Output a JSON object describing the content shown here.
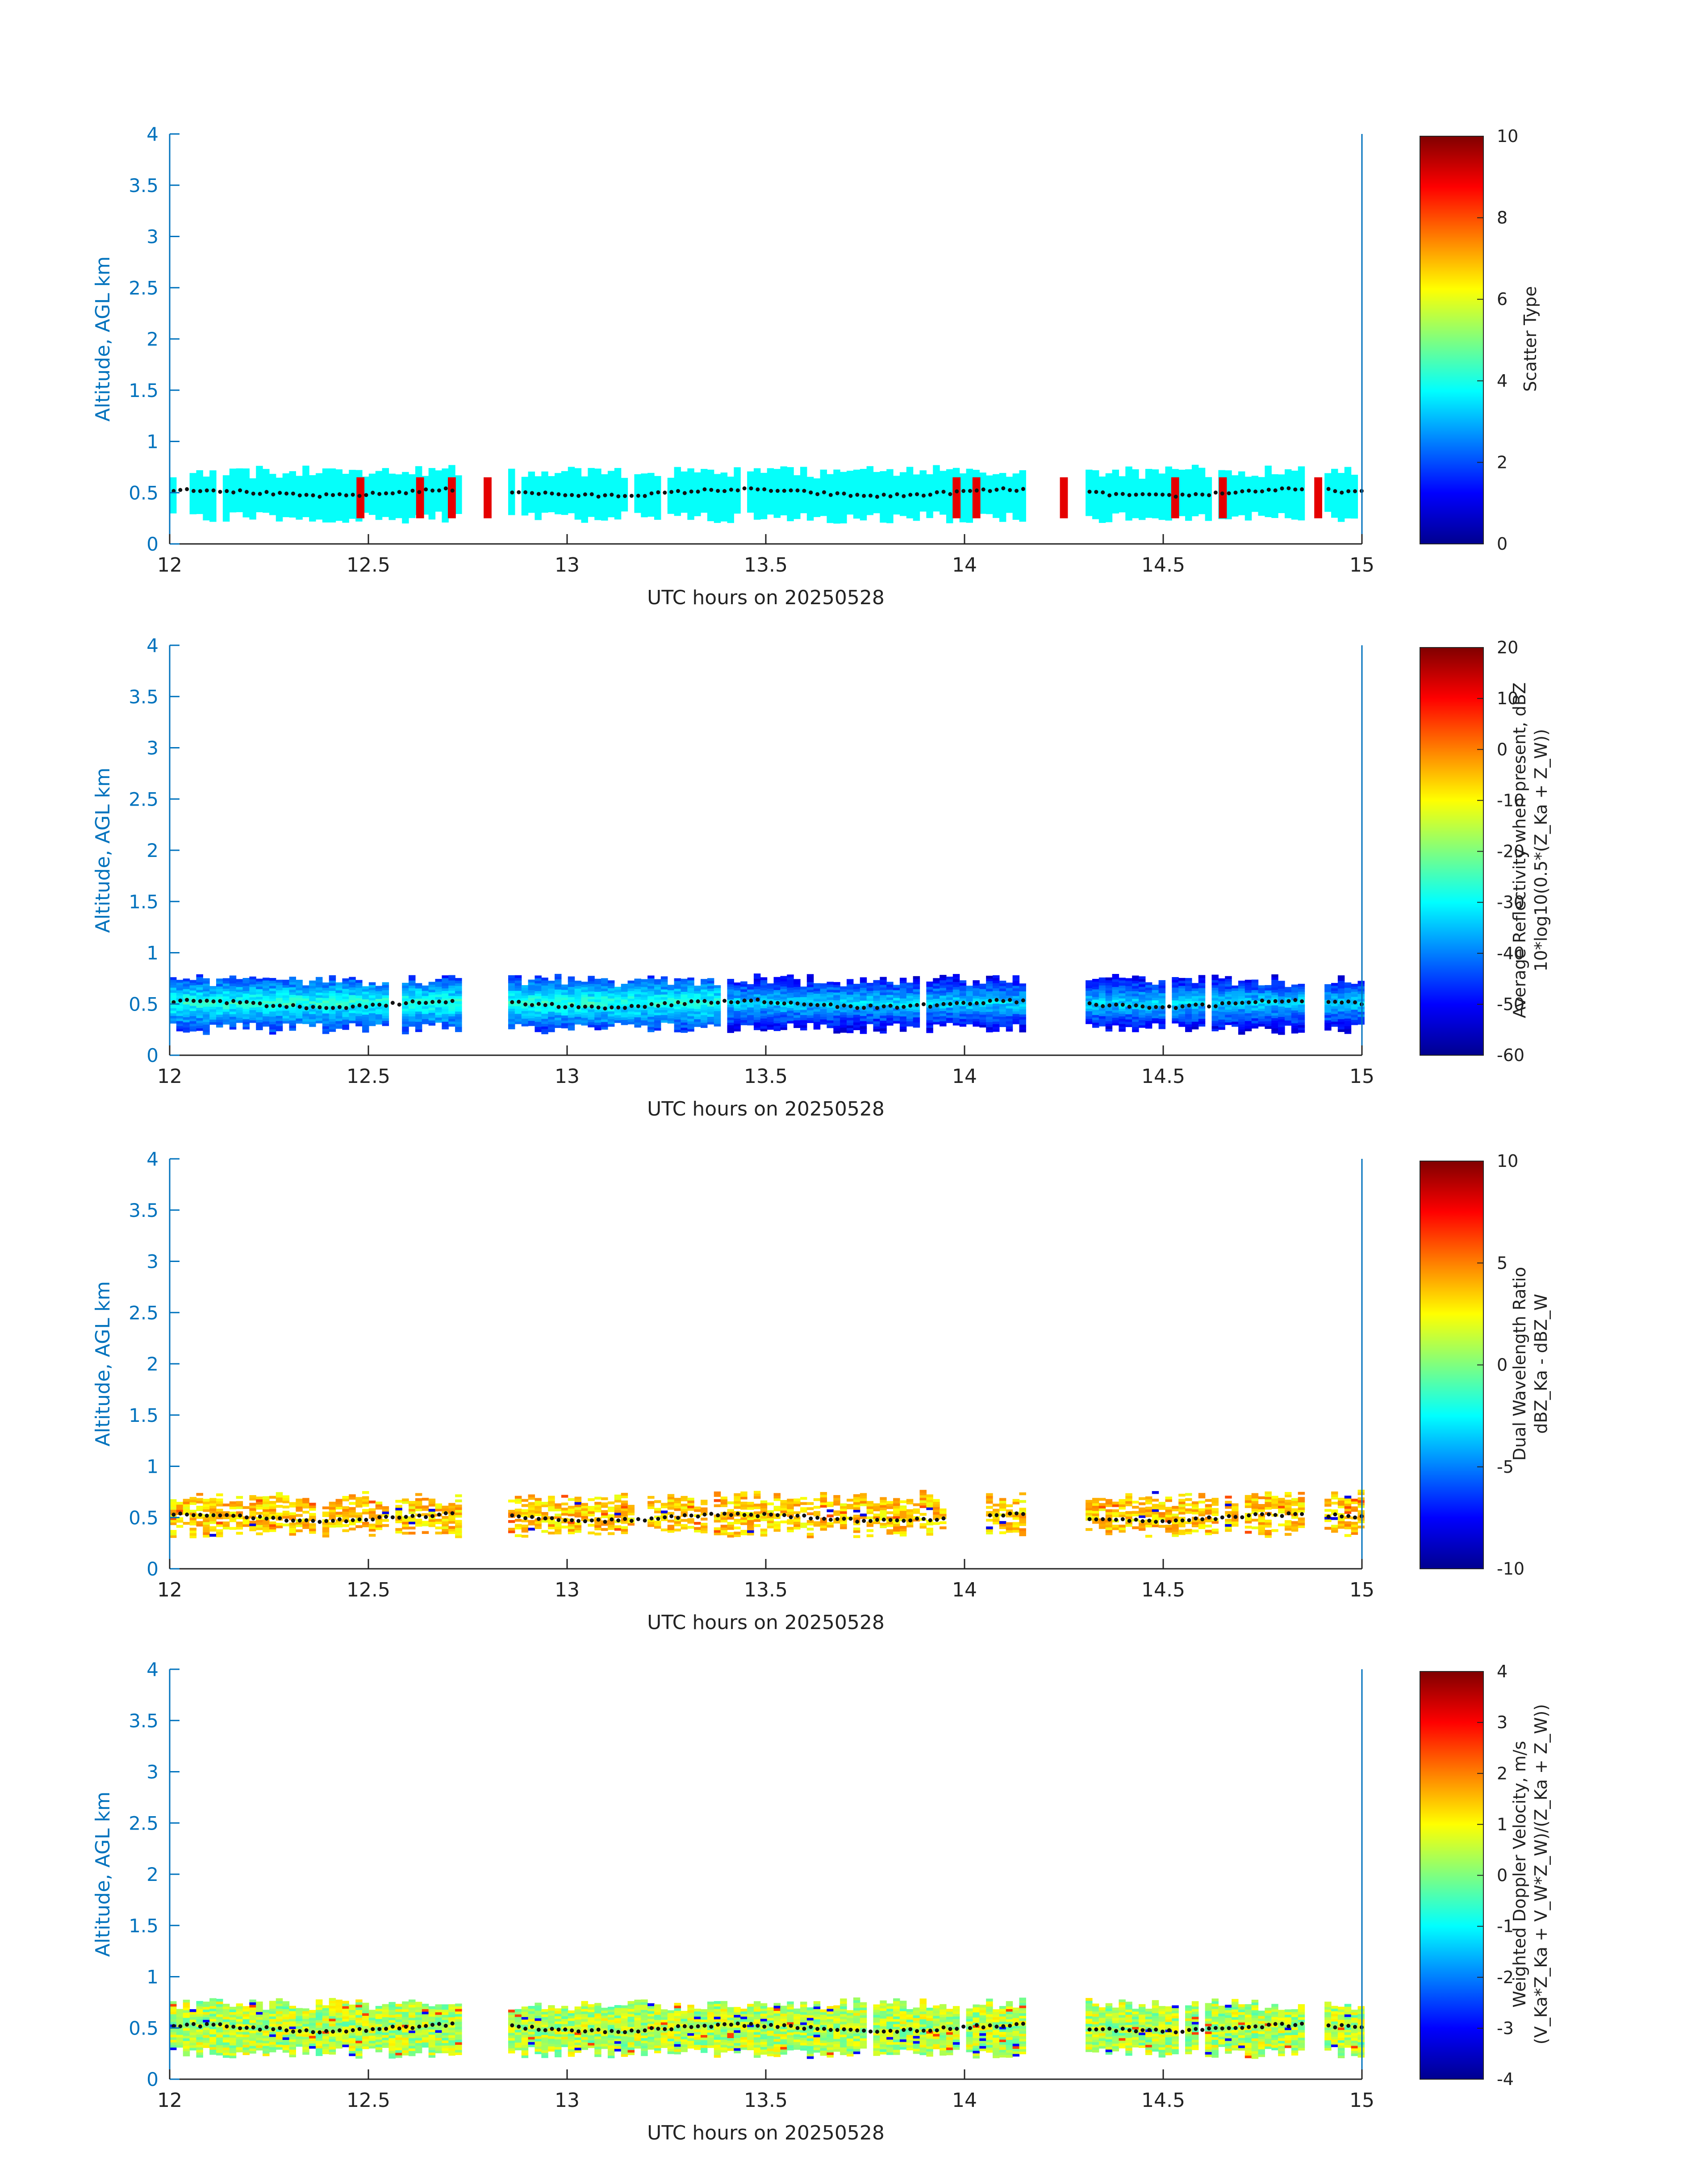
{
  "chart_data": [
    {
      "type": "heatmap",
      "xlabel": "UTC hours on 20250528",
      "ylabel": "Altitude, AGL km",
      "xlim": [
        12,
        15
      ],
      "ylim": [
        0,
        4
      ],
      "xticks": [
        "12",
        "12.5",
        "13",
        "13.5",
        "14",
        "14.5",
        "15"
      ],
      "yticks": [
        "0",
        "0.5",
        "1",
        "1.5",
        "2",
        "2.5",
        "3",
        "3.5",
        "4"
      ],
      "colorbar": {
        "label_lines": [
          "Scatter Type"
        ],
        "range": [
          0,
          10
        ],
        "ticks": [
          "0",
          "2",
          "4",
          "6",
          "8",
          "10"
        ]
      },
      "layer": {
        "bottom_km": 0.2,
        "top_km": 0.75,
        "typical_value": 3.8,
        "gaps": [
          [
            12.72,
            12.85
          ],
          [
            14.15,
            14.3
          ],
          [
            14.85,
            14.9
          ]
        ]
      },
      "anomalies": [
        [
          12.47,
          9.0
        ],
        [
          12.62,
          9.0
        ],
        [
          12.7,
          9.0
        ],
        [
          12.79,
          9.0
        ],
        [
          13.97,
          9.0
        ],
        [
          14.02,
          9.0
        ],
        [
          14.24,
          9.0
        ],
        [
          14.52,
          9.0
        ],
        [
          14.64,
          9.0
        ],
        [
          14.88,
          9.0
        ]
      ],
      "cloud_base_km": 0.5
    },
    {
      "type": "heatmap",
      "xlabel": "UTC hours on 20250528",
      "ylabel": "Altitude, AGL km",
      "xlim": [
        12,
        15
      ],
      "ylim": [
        0,
        4
      ],
      "xticks": [
        "12",
        "12.5",
        "13",
        "13.5",
        "14",
        "14.5",
        "15"
      ],
      "yticks": [
        "0",
        "0.5",
        "1",
        "1.5",
        "2",
        "2.5",
        "3",
        "3.5",
        "4"
      ],
      "colorbar": {
        "label_lines": [
          "Average Reflectivity when present, dBZ",
          "10*log10(0.5*(Z_Ka + Z_W))"
        ],
        "range": [
          -60,
          20
        ],
        "ticks": [
          "-60",
          "-50",
          "-40",
          "-30",
          "-20",
          "-10",
          "0",
          "10",
          "20"
        ]
      },
      "layer": {
        "bottom_km": 0.2,
        "top_km": 0.78,
        "typical_value": -45,
        "gaps": [
          [
            12.72,
            12.85
          ],
          [
            14.15,
            14.3
          ],
          [
            14.85,
            14.9
          ]
        ]
      },
      "cloud_base_km": 0.5
    },
    {
      "type": "heatmap",
      "xlabel": "UTC hours on 20250528",
      "ylabel": "Altitude, AGL km",
      "xlim": [
        12,
        15
      ],
      "ylim": [
        0,
        4
      ],
      "xticks": [
        "12",
        "12.5",
        "13",
        "13.5",
        "14",
        "14.5",
        "15"
      ],
      "yticks": [
        "0",
        "0.5",
        "1",
        "1.5",
        "2",
        "2.5",
        "3",
        "3.5",
        "4"
      ],
      "colorbar": {
        "label_lines": [
          "Dual Wavelength Ratio",
          "dBZ_Ka - dBZ_W"
        ],
        "range": [
          -10,
          10
        ],
        "ticks": [
          "-10",
          "-5",
          "0",
          "5",
          "10"
        ]
      },
      "layer": {
        "bottom_km": 0.3,
        "top_km": 0.75,
        "typical_value": 3.5,
        "gaps": [
          [
            12.72,
            12.85
          ],
          [
            13.95,
            14.05
          ],
          [
            14.15,
            14.3
          ],
          [
            14.85,
            14.9
          ]
        ]
      },
      "cloud_base_km": 0.5
    },
    {
      "type": "heatmap",
      "xlabel": "UTC hours on 20250528",
      "ylabel": "Altitude, AGL km",
      "xlim": [
        12,
        15
      ],
      "ylim": [
        0,
        4
      ],
      "xticks": [
        "12",
        "12.5",
        "13",
        "13.5",
        "14",
        "14.5",
        "15"
      ],
      "yticks": [
        "0",
        "0.5",
        "1",
        "1.5",
        "2",
        "2.5",
        "3",
        "3.5",
        "4"
      ],
      "colorbar": {
        "label_lines": [
          "Weighted Doppler Velocity, m/s",
          "(V_Ka*Z_Ka + V_W*Z_W)/(Z_Ka + Z_W))"
        ],
        "range": [
          -4,
          4
        ],
        "ticks": [
          "-4",
          "-3",
          "-2",
          "-1",
          "0",
          "1",
          "2",
          "3",
          "4"
        ]
      },
      "layer": {
        "bottom_km": 0.2,
        "top_km": 0.78,
        "typical_value": 0.4,
        "gaps": [
          [
            12.72,
            12.85
          ],
          [
            14.15,
            14.3
          ],
          [
            14.85,
            14.9
          ]
        ]
      },
      "cloud_base_km": 0.5
    }
  ]
}
